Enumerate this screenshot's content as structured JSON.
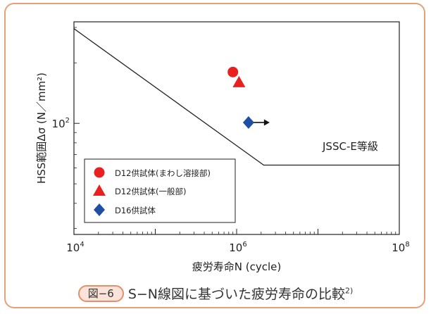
{
  "chart_data": {
    "type": "scatter",
    "x_scale": "log",
    "y_scale": "log",
    "xlim": [
      10000,
      100000000
    ],
    "ylim": [
      28,
      320
    ],
    "xlabel": "疲労寿命N  (cycle)",
    "ylabel": "HSS範囲Δσ  (N／mm²)",
    "x_ticks": [
      {
        "value": 10000,
        "base": "10",
        "exp": "4"
      },
      {
        "value": 1000000,
        "base": "10",
        "exp": "6"
      },
      {
        "value": 100000000,
        "base": "10",
        "exp": "8"
      }
    ],
    "y_ticks": [
      {
        "value": 100,
        "base": "10",
        "exp": "2"
      }
    ],
    "design_curve": {
      "name": "JSSC-E等級",
      "points": [
        [
          10000,
          296
        ],
        [
          2150000,
          62
        ],
        [
          100000000,
          62
        ]
      ]
    },
    "series": [
      {
        "name": "D12供試体(まわし溶接部)",
        "marker": "circle",
        "color": "#e8201f",
        "points": [
          [
            900000,
            180
          ]
        ]
      },
      {
        "name": "D12供試体(一般部)",
        "marker": "triangle",
        "color": "#e8201f",
        "points": [
          [
            1070000,
            160
          ]
        ]
      },
      {
        "name": "D16供試体",
        "marker": "diamond",
        "color": "#1f4fa3",
        "runout": true,
        "points": [
          [
            1400000,
            101
          ]
        ]
      }
    ],
    "legend_position": "bottom-left"
  },
  "caption": {
    "figure_label": "図−6",
    "title": "S−N線図に基づいた疲労寿命の比較",
    "reference": "2)"
  }
}
